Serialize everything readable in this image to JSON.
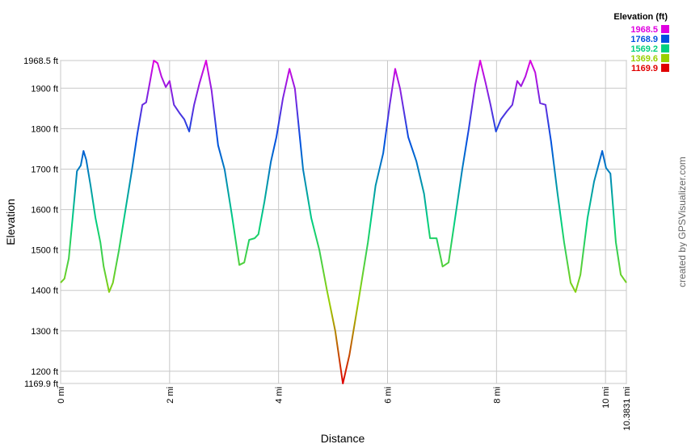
{
  "chart_data": {
    "type": "line",
    "x_label": "Distance",
    "y_label": "Elevation",
    "credit": "created by GPSVisualizer.com",
    "legend": {
      "title": "Elevation (ft)",
      "items": [
        {
          "value": 1968.5,
          "color": "#e000e0"
        },
        {
          "value": 1768.9,
          "color": "#0050e0"
        },
        {
          "value": 1569.2,
          "color": "#00d080"
        },
        {
          "value": 1369.6,
          "color": "#99d000"
        },
        {
          "value": 1169.9,
          "color": "#e00000"
        }
      ]
    },
    "x": [
      0,
      0.07,
      0.15,
      0.22,
      0.3,
      0.37,
      0.42,
      0.47,
      0.55,
      0.64,
      0.73,
      0.79,
      0.89,
      0.96,
      1.07,
      1.19,
      1.31,
      1.41,
      1.5,
      1.57,
      1.63,
      1.71,
      1.78,
      1.85,
      1.93,
      2.0,
      2.08,
      2.18,
      2.27,
      2.36,
      2.45,
      2.55,
      2.67,
      2.77,
      2.89,
      3.01,
      3.14,
      3.28,
      3.37,
      3.46,
      3.56,
      3.63,
      3.74,
      3.86,
      3.96,
      4.08,
      4.2,
      4.3,
      4.45,
      4.6,
      4.75,
      4.89,
      5.04,
      5.18,
      5.3,
      5.46,
      5.64,
      5.78,
      5.92,
      6.04,
      6.14,
      6.23,
      6.38,
      6.53,
      6.67,
      6.78,
      6.9,
      7.01,
      7.12,
      7.24,
      7.37,
      7.49,
      7.61,
      7.7,
      7.8,
      7.89,
      7.99,
      8.08,
      8.19,
      8.29,
      8.38,
      8.45,
      8.53,
      8.62,
      8.71,
      8.8,
      8.9,
      9.0,
      9.12,
      9.24,
      9.36,
      9.45,
      9.54,
      9.67,
      9.79,
      9.94,
      10.01,
      10.09,
      10.19,
      10.28,
      10.3831
    ],
    "series": [
      {
        "name": "Elevation",
        "values": [
          1419,
          1429,
          1479,
          1579,
          1695,
          1709,
          1745,
          1723,
          1659,
          1579,
          1519,
          1459,
          1396,
          1419,
          1499,
          1599,
          1699,
          1789,
          1859,
          1865,
          1909,
          1968.5,
          1962,
          1929,
          1903,
          1918,
          1859,
          1839,
          1823,
          1793,
          1859,
          1913,
          1968.5,
          1895,
          1759,
          1699,
          1589,
          1463,
          1469,
          1525,
          1529,
          1539,
          1619,
          1719,
          1779,
          1875,
          1948,
          1899,
          1699,
          1579,
          1499,
          1399,
          1300,
          1169.9,
          1240,
          1369,
          1519,
          1659,
          1739,
          1859,
          1948,
          1899,
          1779,
          1719,
          1639,
          1529,
          1529,
          1459,
          1469,
          1579,
          1699,
          1799,
          1909,
          1968.5,
          1913,
          1859,
          1793,
          1823,
          1843,
          1859,
          1918,
          1905,
          1929,
          1968.5,
          1939,
          1863,
          1859,
          1769,
          1639,
          1519,
          1419,
          1396,
          1439,
          1579,
          1669,
          1745,
          1703,
          1689,
          1519,
          1439,
          1419
        ]
      }
    ],
    "xlim": [
      0,
      10.3831
    ],
    "xticks": [
      {
        "value": 0,
        "label": "0 mi"
      },
      {
        "value": 2,
        "label": "2 mi"
      },
      {
        "value": 4,
        "label": "4 mi"
      },
      {
        "value": 6,
        "label": "6 mi"
      },
      {
        "value": 8,
        "label": "8 mi"
      },
      {
        "value": 10,
        "label": "10 mi"
      },
      {
        "value": 10.3831,
        "label": "10.3831 mi"
      }
    ],
    "ylim": [
      1169.9,
      1968.5
    ],
    "yticks": [
      {
        "value": 1169.9,
        "label": "1169.9 ft"
      },
      {
        "value": 1200,
        "label": "1200 ft"
      },
      {
        "value": 1300,
        "label": "1300 ft"
      },
      {
        "value": 1400,
        "label": "1400 ft"
      },
      {
        "value": 1500,
        "label": "1500 ft"
      },
      {
        "value": 1600,
        "label": "1600 ft"
      },
      {
        "value": 1700,
        "label": "1700 ft"
      },
      {
        "value": 1800,
        "label": "1800 ft"
      },
      {
        "value": 1900,
        "label": "1900 ft"
      },
      {
        "value": 1968.5,
        "label": "1968.5 ft"
      }
    ],
    "grid": true
  }
}
